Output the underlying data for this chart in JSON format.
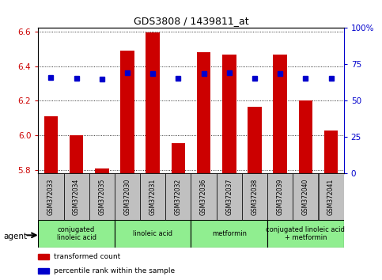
{
  "title": "GDS3808 / 1439811_at",
  "samples": [
    "GSM372033",
    "GSM372034",
    "GSM372035",
    "GSM372030",
    "GSM372031",
    "GSM372032",
    "GSM372036",
    "GSM372037",
    "GSM372038",
    "GSM372039",
    "GSM372040",
    "GSM372041"
  ],
  "bar_values": [
    6.11,
    6.0,
    5.81,
    6.49,
    6.595,
    5.955,
    6.48,
    6.465,
    6.165,
    6.465,
    6.2,
    6.03
  ],
  "percentile_values": [
    6.335,
    6.33,
    6.325,
    6.36,
    6.355,
    6.33,
    6.355,
    6.36,
    6.33,
    6.355,
    6.33,
    6.33
  ],
  "bar_bottom": 5.78,
  "ylim_min": 5.78,
  "ylim_max": 6.62,
  "yticks_left": [
    5.8,
    6.0,
    6.2,
    6.4,
    6.6
  ],
  "yticks_right": [
    0,
    25,
    50,
    75,
    100
  ],
  "ytick_labels_right": [
    "0",
    "25",
    "50",
    "75",
    "100%"
  ],
  "bar_color": "#cc0000",
  "percentile_color": "#0000cc",
  "agent_groups": [
    {
      "label": "conjugated\nlinoleic acid",
      "start": 0,
      "end": 3
    },
    {
      "label": "linoleic acid",
      "start": 3,
      "end": 6
    },
    {
      "label": "metformin",
      "start": 6,
      "end": 9
    },
    {
      "label": "conjugated linoleic acid\n+ metformin",
      "start": 9,
      "end": 12
    }
  ],
  "agent_group_color": "#90ee90",
  "tick_bg_color": "#c0c0c0",
  "legend_items": [
    {
      "color": "#cc0000",
      "label": "transformed count"
    },
    {
      "color": "#0000cc",
      "label": "percentile rank within the sample"
    }
  ],
  "agent_label": "agent"
}
